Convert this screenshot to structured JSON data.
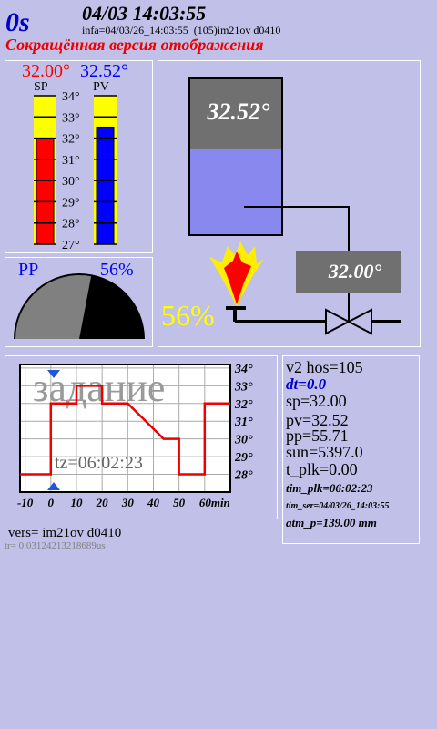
{
  "header": {
    "timer": "0s",
    "datetime": "04/03 14:03:55",
    "info": "infa=04/03/26_14:03:55  (105)im21ov d0410",
    "subtitle": "Сокращённая версия отображения"
  },
  "bars": {
    "sp": {
      "name": "SP",
      "value": 32.0,
      "label": "32.00°",
      "color": "#ff0000"
    },
    "pv": {
      "name": "PV",
      "value": 32.52,
      "label": "32.52°",
      "color": "#0000ff"
    },
    "ticks": [
      {
        "value": 34,
        "label": "34°"
      },
      {
        "value": 33,
        "label": "33°"
      },
      {
        "value": 32,
        "label": "32°"
      },
      {
        "value": 31,
        "label": "31°"
      },
      {
        "value": 30,
        "label": "30°"
      },
      {
        "value": 29,
        "label": "29°"
      },
      {
        "value": 28,
        "label": "28°"
      },
      {
        "value": 27,
        "label": "27°"
      }
    ]
  },
  "gauge": {
    "name": "PP",
    "value": 56,
    "label": "56%"
  },
  "chart_data": {
    "type": "line",
    "title": "задание",
    "annotation": "tz=06:02:23",
    "x": [
      -12,
      0,
      0,
      10,
      10,
      20,
      20,
      30,
      44,
      50,
      50,
      60,
      60,
      70
    ],
    "values": [
      28,
      28,
      32,
      32,
      33,
      33,
      32,
      32,
      30,
      30,
      28,
      28,
      32,
      32
    ],
    "color": "#ee0000",
    "xlim": [
      -12,
      70
    ],
    "ylim": [
      27,
      34.2
    ],
    "xticks": [
      -10,
      0,
      10,
      20,
      30,
      40,
      50,
      {
        "value": 60,
        "label": "60min"
      }
    ],
    "yticks": [
      {
        "value": 34,
        "label": "34°"
      },
      {
        "value": 33,
        "label": "33°"
      },
      {
        "value": 32,
        "label": "32°"
      },
      {
        "value": 31,
        "label": "31°"
      },
      {
        "value": 30,
        "label": "30°"
      },
      {
        "value": 29,
        "label": "29°"
      },
      {
        "value": 28,
        "label": "28°"
      }
    ],
    "grid": true
  },
  "footer": {
    "version": "vers= im21ov d0410",
    "trace": "tr= 0.03124213218689us"
  },
  "status": [
    "v2 hos=105",
    "dt=0.0",
    "sp=32.00",
    "pv=32.52",
    "pp=55.71",
    "sun=5397.0",
    "t_plk=0.00",
    "tim_plk=06:02:23",
    "tim_ser=04/03/26_14:03:55",
    "atm_p=139.00 mm"
  ]
}
